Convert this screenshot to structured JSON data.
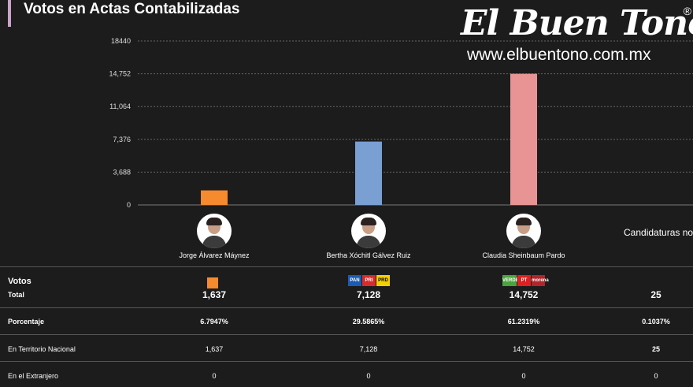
{
  "title": "Votos en Actas Contabilizadas",
  "logo": {
    "name": "El Buen Tono",
    "reg": "®",
    "url": "www.elbuentono.com.mx"
  },
  "chart_data": {
    "type": "bar",
    "categories": [
      "Jorge Álvarez Máynez",
      "Bertha Xóchitl Gálvez Ruiz",
      "Claudia Sheinbaum Pardo"
    ],
    "values": [
      1637,
      7128,
      14752
    ],
    "colors": [
      "#f58a2e",
      "#7a9fd3",
      "#e89494"
    ],
    "ylim": [
      0,
      18440
    ],
    "yticks": [
      "18440",
      "14,752",
      "11,064",
      "7,376",
      "3,688",
      "0"
    ],
    "ytick_values": [
      18440,
      14752,
      11064,
      7376,
      3688,
      0
    ],
    "grid": true
  },
  "candidates": [
    {
      "name": "Jorge Álvarez Máynez"
    },
    {
      "name": "Bertha Xóchitl Gálvez Ruiz"
    },
    {
      "name": "Claudia Sheinbaum Pardo"
    }
  ],
  "no_registradas": "Candidaturas no re",
  "parties": {
    "mc": {
      "color": "#f58a2e"
    },
    "pan": {
      "label": "PAN",
      "color": "#1c5bb5"
    },
    "pri": {
      "label": "PRI",
      "color": "#d92b2b"
    },
    "prd": {
      "label": "PRD",
      "color": "#f5d000"
    },
    "pvem": {
      "label": "VERDE",
      "color": "#4aa43c"
    },
    "pt": {
      "label": "PT",
      "color": "#e02020"
    },
    "morena": {
      "label": "morena",
      "color": "#b0262b"
    }
  },
  "table": {
    "votos_label": "Votos",
    "total_label": "Total",
    "totals": [
      "1,637",
      "7,128",
      "14,752",
      "25"
    ],
    "porcentaje_label": "Porcentaje",
    "porcentajes": [
      "6.7947%",
      "29.5865%",
      "61.2319%",
      "0.1037%"
    ],
    "territorio_label": "En Territorio Nacional",
    "territorio": [
      "1,637",
      "7,128",
      "14,752",
      "25"
    ],
    "extranjero_label": "En el Extranjero",
    "extranjero": [
      "0",
      "0",
      "0",
      "0"
    ]
  }
}
